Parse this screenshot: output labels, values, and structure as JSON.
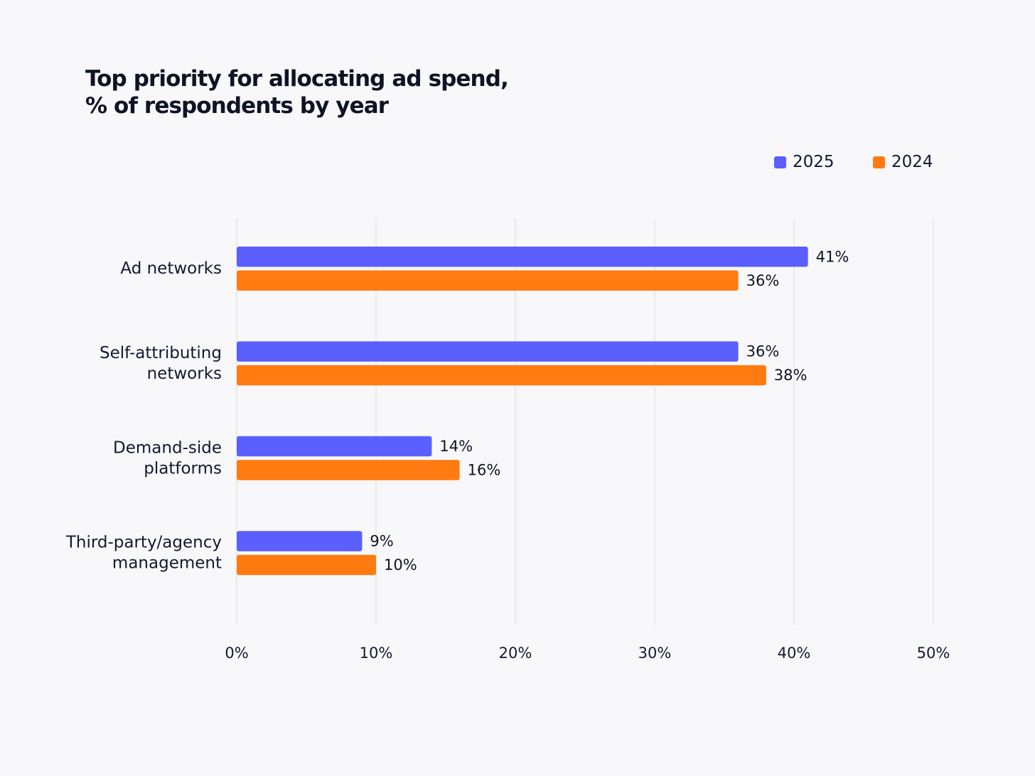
{
  "chart_data": {
    "type": "bar",
    "orientation": "horizontal",
    "title_lines": [
      "Top priority for allocating ad spend,",
      "% of respondents by year"
    ],
    "categories": [
      [
        "Ad networks"
      ],
      [
        "Self-attributing",
        "networks"
      ],
      [
        "Demand-side",
        "platforms"
      ],
      [
        "Third-party/agency",
        "management"
      ]
    ],
    "series": [
      {
        "name": "2025",
        "color": "#5a5ffd",
        "values": [
          41,
          36,
          14,
          9
        ],
        "labels": [
          "41%",
          "36%",
          "14%",
          "9%"
        ]
      },
      {
        "name": "2024",
        "color": "#ff7a10",
        "values": [
          36,
          38,
          16,
          10
        ],
        "labels": [
          "36%",
          "38%",
          "16%",
          "10%"
        ]
      }
    ],
    "xlim": [
      0,
      50
    ],
    "ticks": [
      0,
      10,
      20,
      30,
      40,
      50
    ],
    "tick_labels": [
      "0%",
      "10%",
      "20%",
      "30%",
      "40%",
      "50%"
    ],
    "grid": true,
    "legend_position": "top-right"
  }
}
